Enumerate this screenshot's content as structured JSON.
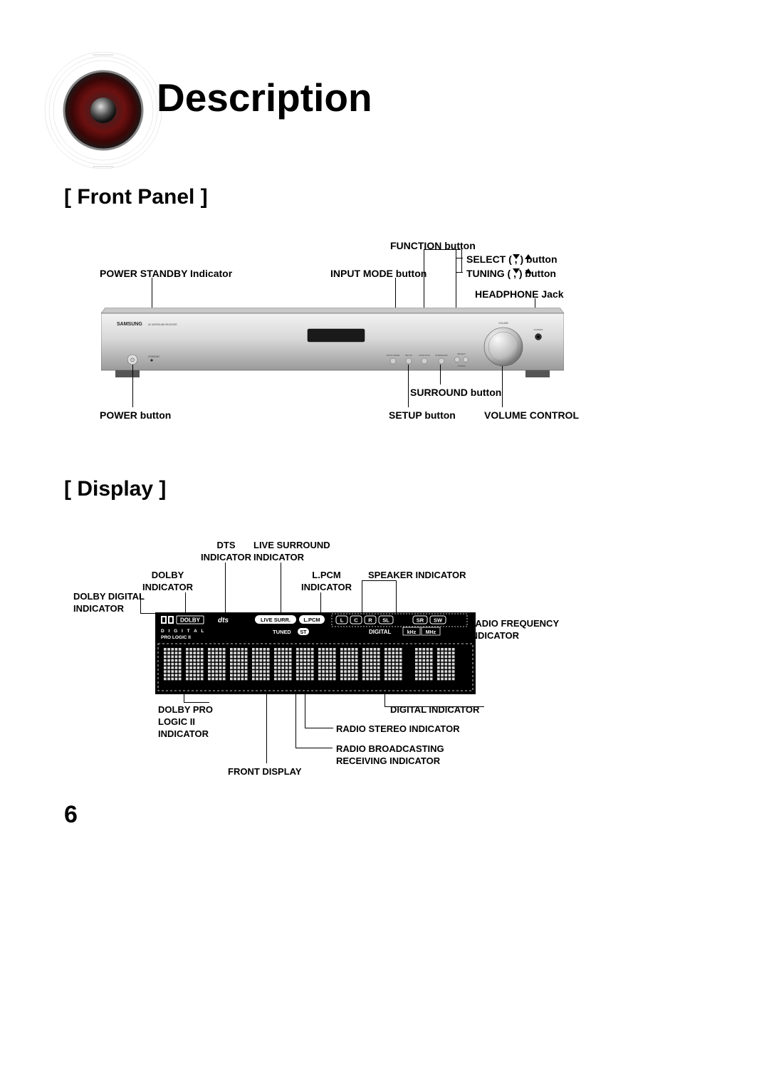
{
  "page": {
    "title": "Description",
    "number": "6",
    "background_color": "#ffffff",
    "text_color": "#000000"
  },
  "front_panel": {
    "section_label": "[ Front Panel ]",
    "callouts_top": {
      "power_standby": "POWER STANDBY Indicator",
      "function_btn": "FUNCTION button",
      "input_mode_btn": "INPUT MODE button",
      "select_btn": "SELECT (     ,     ) button",
      "tuning_btn": "TUNING (     ,     ) button",
      "headphone_jack": "HEADPHONE Jack"
    },
    "callouts_bottom": {
      "power_btn": "POWER button",
      "setup_btn": "SETUP button",
      "surround_btn": "SURROUND button",
      "volume_ctrl": "VOLUME CONTROL"
    },
    "device": {
      "brand": "SAMSUNG",
      "subtitle": "AV SURROUND RECEIVER",
      "body_fill_top": "#e6e6e6",
      "body_fill_bottom": "#a6a6a6",
      "stroke": "#333333",
      "button_labels": [
        "INPUT MODE",
        "SETUP",
        "FUNCTION",
        "SURROUND",
        "SELECT",
        "TUNING"
      ],
      "knob_label": "VOLUME",
      "jack_label": "PHONES",
      "standby_label": "STANDBY",
      "power_glyph": "⏻"
    }
  },
  "display": {
    "section_label": "[ Display ]",
    "callouts_top": {
      "dolby_digital": "DOLBY DIGITAL\nINDICATOR",
      "dolby": "DOLBY\nINDICATOR",
      "dts": "DTS\nINDICATOR",
      "live_surround": "LIVE SURROUND\nINDICATOR",
      "lpcm": "L.PCM\nINDICATOR",
      "speaker": "SPEAKER INDICATOR"
    },
    "callouts_right": {
      "radio_freq": "RADIO FREQUENCY\nINDICATOR"
    },
    "callouts_bottom": {
      "dolby_prologic": "DOLBY PRO\nLOGIC II\nINDICATOR",
      "front_display": "FRONT DISPLAY",
      "radio_broadcasting": "RADIO BROADCASTING\nRECEIVING INDICATOR",
      "radio_stereo": "RADIO STEREO INDICATOR",
      "digital_indicator": "DIGITAL INDICATOR"
    },
    "panel": {
      "bg": "#000000",
      "fg": "#ffffff",
      "labels": {
        "dolby": "DOLBY",
        "dts": "dts",
        "live_surr": "LIVE SURR.",
        "lpcm": "L.PCM",
        "speakers": [
          "L",
          "C",
          "R",
          "SL",
          "SR",
          "SW"
        ],
        "digital": "D I G I T A L",
        "prologic": "PRO LOGIC II",
        "tuned": "TUNED",
        "st": "ST",
        "digital2": "DIGITAL",
        "khz": "kHz",
        "mhz": "MHz"
      },
      "digit_count": 13,
      "digit_gap_after": 10,
      "dashed_box_color": "#ffffff"
    }
  }
}
